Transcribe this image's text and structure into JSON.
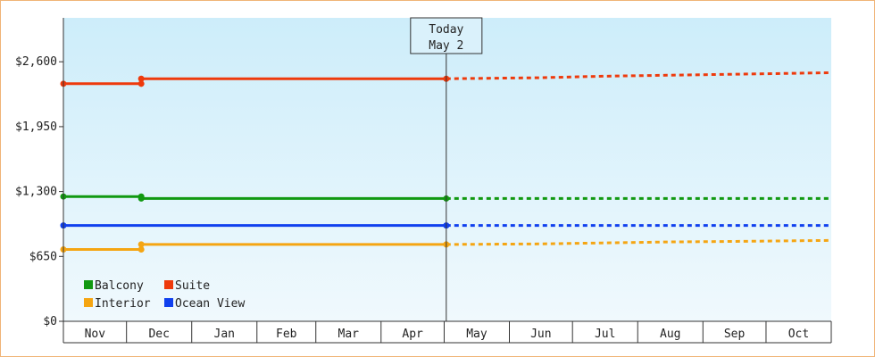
{
  "chart_data": {
    "type": "line",
    "title": "",
    "xlabel": "",
    "ylabel": "",
    "months": [
      "Nov",
      "Dec",
      "Jan",
      "Feb",
      "Mar",
      "Apr",
      "May",
      "Jun",
      "Jul",
      "Aug",
      "Sep",
      "Oct"
    ],
    "x_range": [
      "2024-11-01",
      "2025-10-31"
    ],
    "ylim": [
      0,
      3040
    ],
    "y_ticks": [
      0,
      650,
      1300,
      1950,
      2600
    ],
    "y_tick_labels": [
      "$0",
      "$650",
      "$1,300",
      "$1,950",
      "$2,600"
    ],
    "today": {
      "label": "Today",
      "date_label": "May 2",
      "date": "2025-05-02"
    },
    "series": [
      {
        "name": "Balcony",
        "color": "#119911",
        "history": [
          [
            "2024-11-01",
            1250
          ],
          [
            "2024-12-08",
            1250
          ],
          [
            "2024-12-08",
            1230
          ],
          [
            "2025-05-02",
            1230
          ]
        ],
        "forecast": [
          [
            "2025-05-02",
            1230
          ],
          [
            "2025-10-31",
            1230
          ]
        ]
      },
      {
        "name": "Suite",
        "color": "#ee3a0c",
        "history": [
          [
            "2024-11-01",
            2380
          ],
          [
            "2024-12-08",
            2380
          ],
          [
            "2024-12-08",
            2430
          ],
          [
            "2025-05-02",
            2430
          ]
        ],
        "forecast": [
          [
            "2025-05-02",
            2430
          ],
          [
            "2025-06-15",
            2440
          ],
          [
            "2025-07-15",
            2455
          ],
          [
            "2025-08-15",
            2465
          ],
          [
            "2025-09-15",
            2475
          ],
          [
            "2025-10-31",
            2490
          ]
        ]
      },
      {
        "name": "Interior",
        "color": "#f5a512",
        "history": [
          [
            "2024-11-01",
            720
          ],
          [
            "2024-12-08",
            720
          ],
          [
            "2024-12-08",
            770
          ],
          [
            "2025-05-02",
            770
          ]
        ],
        "forecast": [
          [
            "2025-05-02",
            770
          ],
          [
            "2025-06-15",
            775
          ],
          [
            "2025-07-15",
            785
          ],
          [
            "2025-08-15",
            795
          ],
          [
            "2025-09-15",
            800
          ],
          [
            "2025-10-31",
            810
          ]
        ]
      },
      {
        "name": "Ocean View",
        "color": "#1040ee",
        "history": [
          [
            "2024-11-01",
            960
          ],
          [
            "2025-05-02",
            960
          ]
        ],
        "forecast": [
          [
            "2025-05-02",
            960
          ],
          [
            "2025-10-31",
            960
          ]
        ]
      }
    ],
    "legend": {
      "placement": "bottom-left",
      "columns": 2
    }
  }
}
